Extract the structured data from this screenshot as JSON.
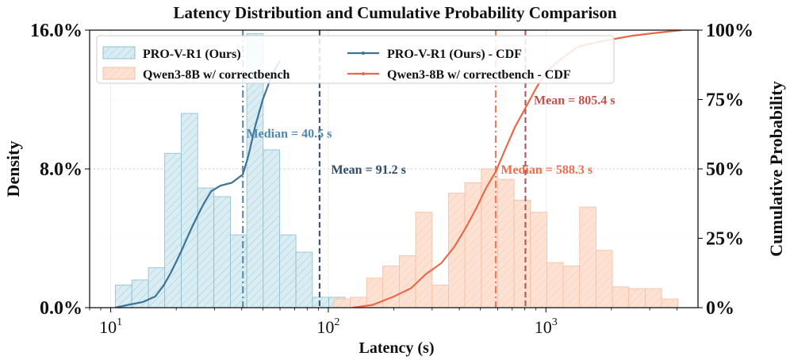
{
  "chart_data": {
    "type": "histogram+cdf",
    "title": "Latency Distribution and Cumulative Probability Comparison",
    "xlabel": "Latency (s)",
    "ylabel_left": "Density",
    "ylabel_right": "Cumulative Probability",
    "x_scale": "log",
    "xlim": [
      8,
      5000
    ],
    "ylim_left": [
      0,
      16.0
    ],
    "ylim_right": [
      0,
      100
    ],
    "x_ticks": [
      {
        "base": "10",
        "exp": "1",
        "value": 10
      },
      {
        "base": "10",
        "exp": "2",
        "value": 100
      },
      {
        "base": "10",
        "exp": "3",
        "value": 1000
      }
    ],
    "y_ticks_left": [
      {
        "value": 0,
        "label": "0.0%"
      },
      {
        "value": 8,
        "label": "8.0%"
      },
      {
        "value": 16,
        "label": "16.0%"
      }
    ],
    "y_ticks_right": [
      {
        "value": 0,
        "label": "0%"
      },
      {
        "value": 25,
        "label": "25%"
      },
      {
        "value": 50,
        "label": "50%"
      },
      {
        "value": 75,
        "label": "75%"
      },
      {
        "value": 100,
        "label": "100%"
      }
    ],
    "legend": {
      "placement": "top-left",
      "entries": [
        {
          "label": "PRO-V-R1 (Ours)",
          "kind": "hist",
          "color": "#a9d6e2"
        },
        {
          "label": "Qwen3-8B w/ correctbench",
          "kind": "hist",
          "color": "#fbc9ad"
        },
        {
          "label": "PRO-V-R1 (Ours) - CDF",
          "kind": "line",
          "color": "#3e7399"
        },
        {
          "label": "Qwen3-8B w/ correctbench - CDF",
          "kind": "line",
          "color": "#e8694a"
        }
      ]
    },
    "histograms": [
      {
        "name": "PRO-V-R1 (Ours)",
        "fill": "#d7edf3",
        "edge": "#8fc0d1",
        "hatch_color": "#9fcad8",
        "bins": [
          [
            10.5,
            12.5,
            1.3
          ],
          [
            12.5,
            14.9,
            1.6
          ],
          [
            14.9,
            17.7,
            2.3
          ],
          [
            17.7,
            21.1,
            8.9
          ],
          [
            21.1,
            25.1,
            11.2
          ],
          [
            25.1,
            29.8,
            6.9
          ],
          [
            29.8,
            35.5,
            6.4
          ],
          [
            35.5,
            42.2,
            4.2
          ],
          [
            42.2,
            50.2,
            15.8
          ],
          [
            50.2,
            59.7,
            9.1
          ],
          [
            59.7,
            71.0,
            4.2
          ],
          [
            71.0,
            84.5,
            3.2
          ],
          [
            84.5,
            100.5,
            0.6
          ],
          [
            100.5,
            119.5,
            0.6
          ]
        ]
      },
      {
        "name": "Qwen3-8B w/ correctbench",
        "fill": "#fde1d1",
        "edge": "#f6bfa3",
        "hatch_color": "#f7c7ae",
        "bins": [
          [
            106,
            126,
            0.5
          ],
          [
            126,
            150,
            0.6
          ],
          [
            150,
            178,
            1.7
          ],
          [
            178,
            212,
            2.4
          ],
          [
            212,
            252,
            3.0
          ],
          [
            252,
            300,
            5.5
          ],
          [
            300,
            357,
            1.3
          ],
          [
            357,
            424,
            6.6
          ],
          [
            424,
            505,
            7.2
          ],
          [
            505,
            600,
            8.0
          ],
          [
            600,
            714,
            7.4
          ],
          [
            714,
            849,
            6.2
          ],
          [
            849,
            1010,
            5.5
          ],
          [
            1010,
            1201,
            2.6
          ],
          [
            1201,
            1429,
            2.4
          ],
          [
            1429,
            1700,
            5.8
          ],
          [
            1700,
            2021,
            3.3
          ],
          [
            2021,
            2404,
            1.2
          ],
          [
            2404,
            2860,
            1.1
          ],
          [
            2860,
            3400,
            1.1
          ],
          [
            3400,
            4045,
            0.5
          ]
        ]
      }
    ],
    "cdf_series": [
      {
        "name": "PRO-V-R1 (Ours) - CDF",
        "color": "#3e7399",
        "points": [
          [
            10.5,
            0
          ],
          [
            12,
            1
          ],
          [
            14,
            2
          ],
          [
            16,
            4
          ],
          [
            17.5,
            8
          ],
          [
            19,
            13
          ],
          [
            21,
            20
          ],
          [
            23,
            27
          ],
          [
            25,
            33
          ],
          [
            27,
            38
          ],
          [
            29,
            42
          ],
          [
            32,
            44
          ],
          [
            36,
            45
          ],
          [
            40.5,
            48
          ],
          [
            43,
            55
          ],
          [
            46,
            65
          ],
          [
            50,
            75
          ],
          [
            54,
            82
          ],
          [
            57,
            86
          ],
          [
            60,
            89
          ]
        ]
      },
      {
        "name": "Qwen3-8B w/ correctbench - CDF",
        "color": "#e8694a",
        "points": [
          [
            130,
            0
          ],
          [
            160,
            1
          ],
          [
            200,
            4
          ],
          [
            240,
            7
          ],
          [
            280,
            12
          ],
          [
            330,
            16
          ],
          [
            380,
            22
          ],
          [
            430,
            29
          ],
          [
            480,
            36
          ],
          [
            530,
            43
          ],
          [
            588.3,
            49
          ],
          [
            650,
            57
          ],
          [
            720,
            65
          ],
          [
            805.4,
            72
          ],
          [
            900,
            79
          ],
          [
            1000,
            85
          ],
          [
            1150,
            89
          ],
          [
            1400,
            94
          ],
          [
            1800,
            96
          ],
          [
            2500,
            98
          ],
          [
            3200,
            99
          ],
          [
            4200,
            100
          ]
        ]
      }
    ],
    "vlines": [
      {
        "x": 40.5,
        "style": "dashdot",
        "color": "#5b8db0"
      },
      {
        "x": 91.2,
        "style": "dashed",
        "color": "#3a5878"
      },
      {
        "x": 588.3,
        "style": "dashdot",
        "color": "#ec7c5c"
      },
      {
        "x": 805.4,
        "style": "dashed",
        "color": "#b9585a"
      }
    ],
    "annotations": [
      {
        "text": "Median = 40.5 s",
        "x": 42,
        "y": 63,
        "color": "#4e86ad"
      },
      {
        "text": "Mean = 91.2 s",
        "x": 103,
        "y": 50,
        "color": "#2f4a69"
      },
      {
        "text": "Median = 588.3 s",
        "x": 620,
        "y": 50,
        "color": "#ec6e4c"
      },
      {
        "text": "Mean = 805.4 s",
        "x": 880,
        "y": 75,
        "color": "#c0504d"
      }
    ]
  }
}
